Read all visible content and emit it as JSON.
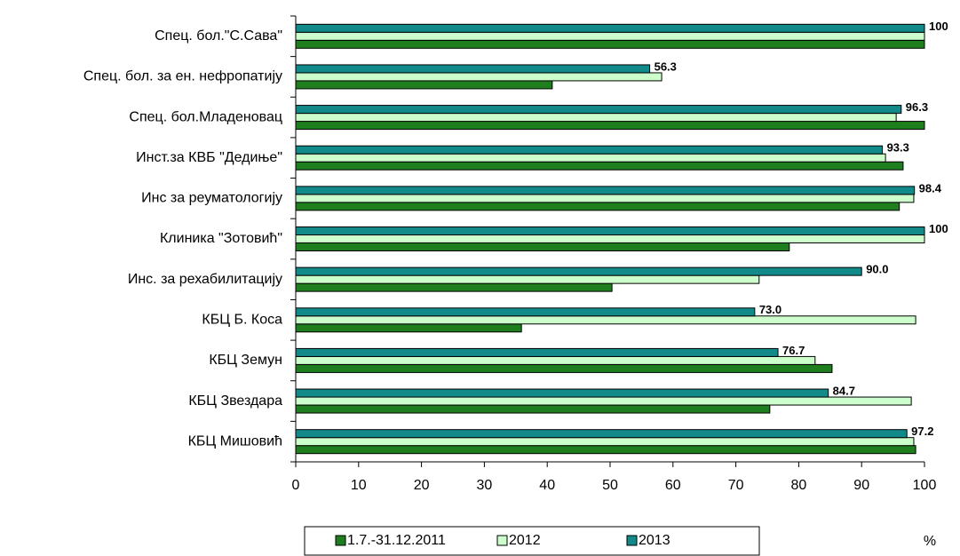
{
  "chart_data": {
    "type": "bar",
    "orientation": "horizontal",
    "categories": [
      "Спец. бол.\"С.Сава\"",
      "Спец. бол. за ен. нефропатију",
      "Спец. бол.Младеновац",
      "Инст.за КВБ \"Дедиње\"",
      "Инс за реуматологију",
      "Клиника \"Зотовић\"",
      "Инс. за рехабилитацију",
      "КБЦ Б. Коса",
      "КБЦ Земун",
      "КБЦ Звездара",
      "КБЦ Мишовић"
    ],
    "series": [
      {
        "name": "1.7.-31.12.2011",
        "color": "#1f7f1f",
        "values": [
          100,
          40.8,
          100,
          96.6,
          96,
          78.5,
          50.3,
          35.9,
          85.3,
          75.4,
          98.6
        ]
      },
      {
        "name": "2012",
        "color": "#ccffcc",
        "values": [
          100,
          58.2,
          95.5,
          93.8,
          98.3,
          100,
          73.7,
          98.6,
          82.6,
          97.9,
          98.3
        ]
      },
      {
        "name": "2013",
        "color": "#128a8a",
        "values": [
          100,
          56.3,
          96.3,
          93.3,
          98.4,
          100,
          90.0,
          73.0,
          76.7,
          84.7,
          97.2
        ],
        "value_labels": [
          "100",
          "56.3",
          "96.3",
          "93.3",
          "98.4",
          "100",
          "90.0",
          "73.0",
          "76.7",
          "84.7",
          "97.2"
        ]
      }
    ],
    "x_label": "%",
    "xlim": [
      0,
      100
    ],
    "xticks": [
      0,
      10,
      20,
      30,
      40,
      50,
      60,
      70,
      80,
      90,
      100
    ],
    "grid": false,
    "legend": "bottom"
  }
}
